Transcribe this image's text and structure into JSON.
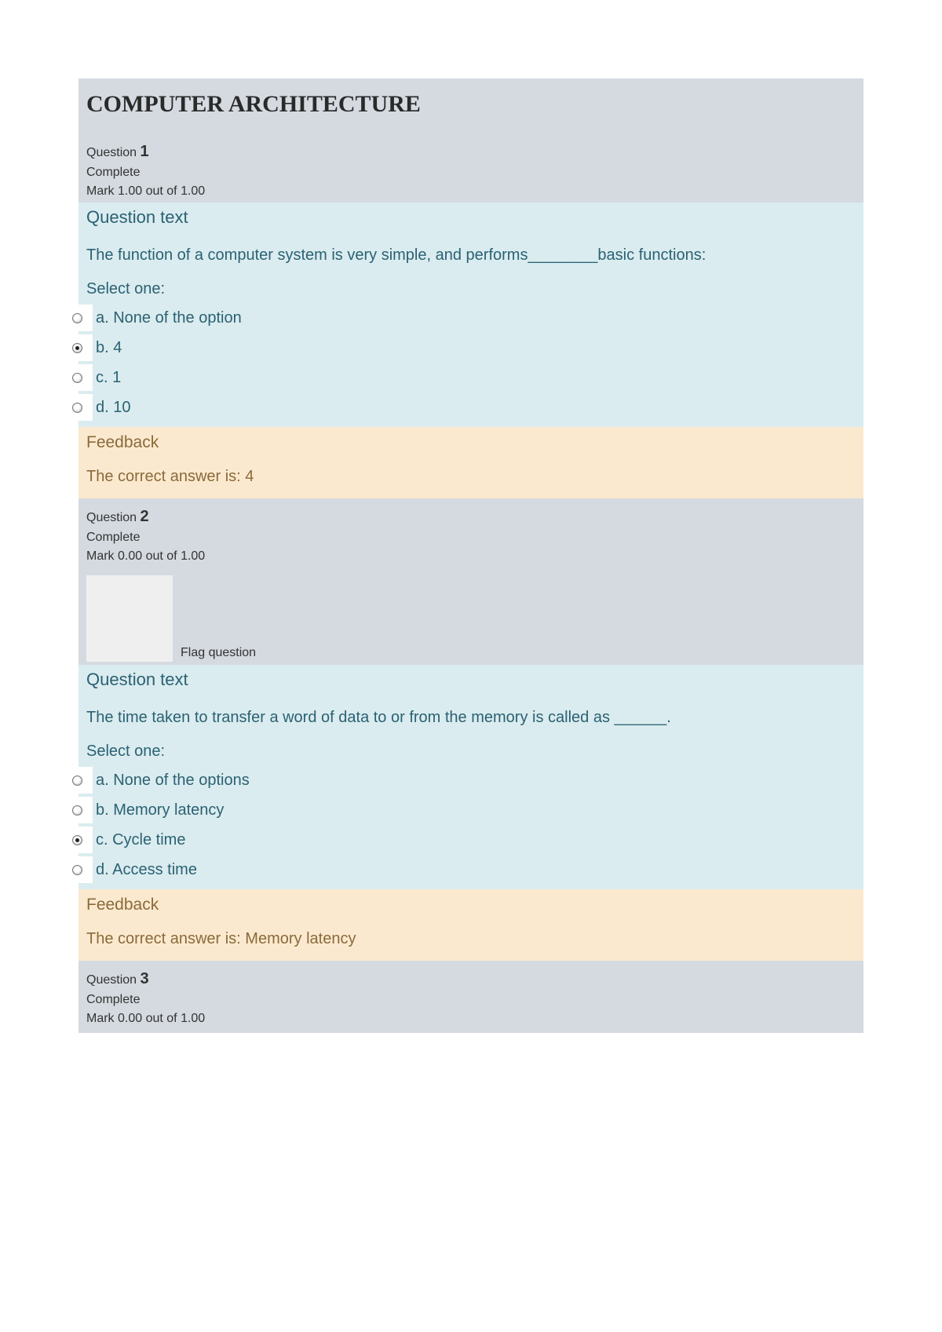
{
  "colors": {
    "header_bg": "#d4dae0",
    "question_bg": "#daecef",
    "feedback_bg": "#fbe9cf",
    "question_text_color": "#2b6173",
    "feedback_text_color": "#8a6a3a",
    "page_bg": "#ffffff"
  },
  "page_title": "COMPUTER ARCHITECTURE",
  "labels": {
    "question": "Question",
    "complete": "Complete",
    "question_text": "Question text",
    "select_one": "Select one:",
    "feedback": "Feedback",
    "flag_question": "Flag question"
  },
  "q1": {
    "number": "1",
    "mark": "Mark 1.00 out of 1.00",
    "text": "The function of a computer system is very simple, and performs________basic functions:",
    "options": [
      {
        "label": "a. None of the option",
        "selected": false
      },
      {
        "label": "b. 4",
        "selected": true
      },
      {
        "label": "c. 1",
        "selected": false
      },
      {
        "label": "d. 10",
        "selected": false
      }
    ],
    "answer": "The correct answer is: 4"
  },
  "q2": {
    "number": "2",
    "mark": "Mark 0.00 out of 1.00",
    "text": "The time taken to transfer a word of data to or from the memory is called as ______.",
    "options": [
      {
        "label": "a. None of the options",
        "selected": false
      },
      {
        "label": "b. Memory latency",
        "selected": false
      },
      {
        "label": "c. Cycle time",
        "selected": true
      },
      {
        "label": "d. Access time",
        "selected": false
      }
    ],
    "answer": "The correct answer is: Memory latency"
  },
  "q3": {
    "number": "3",
    "mark": "Mark 0.00 out of 1.00"
  }
}
